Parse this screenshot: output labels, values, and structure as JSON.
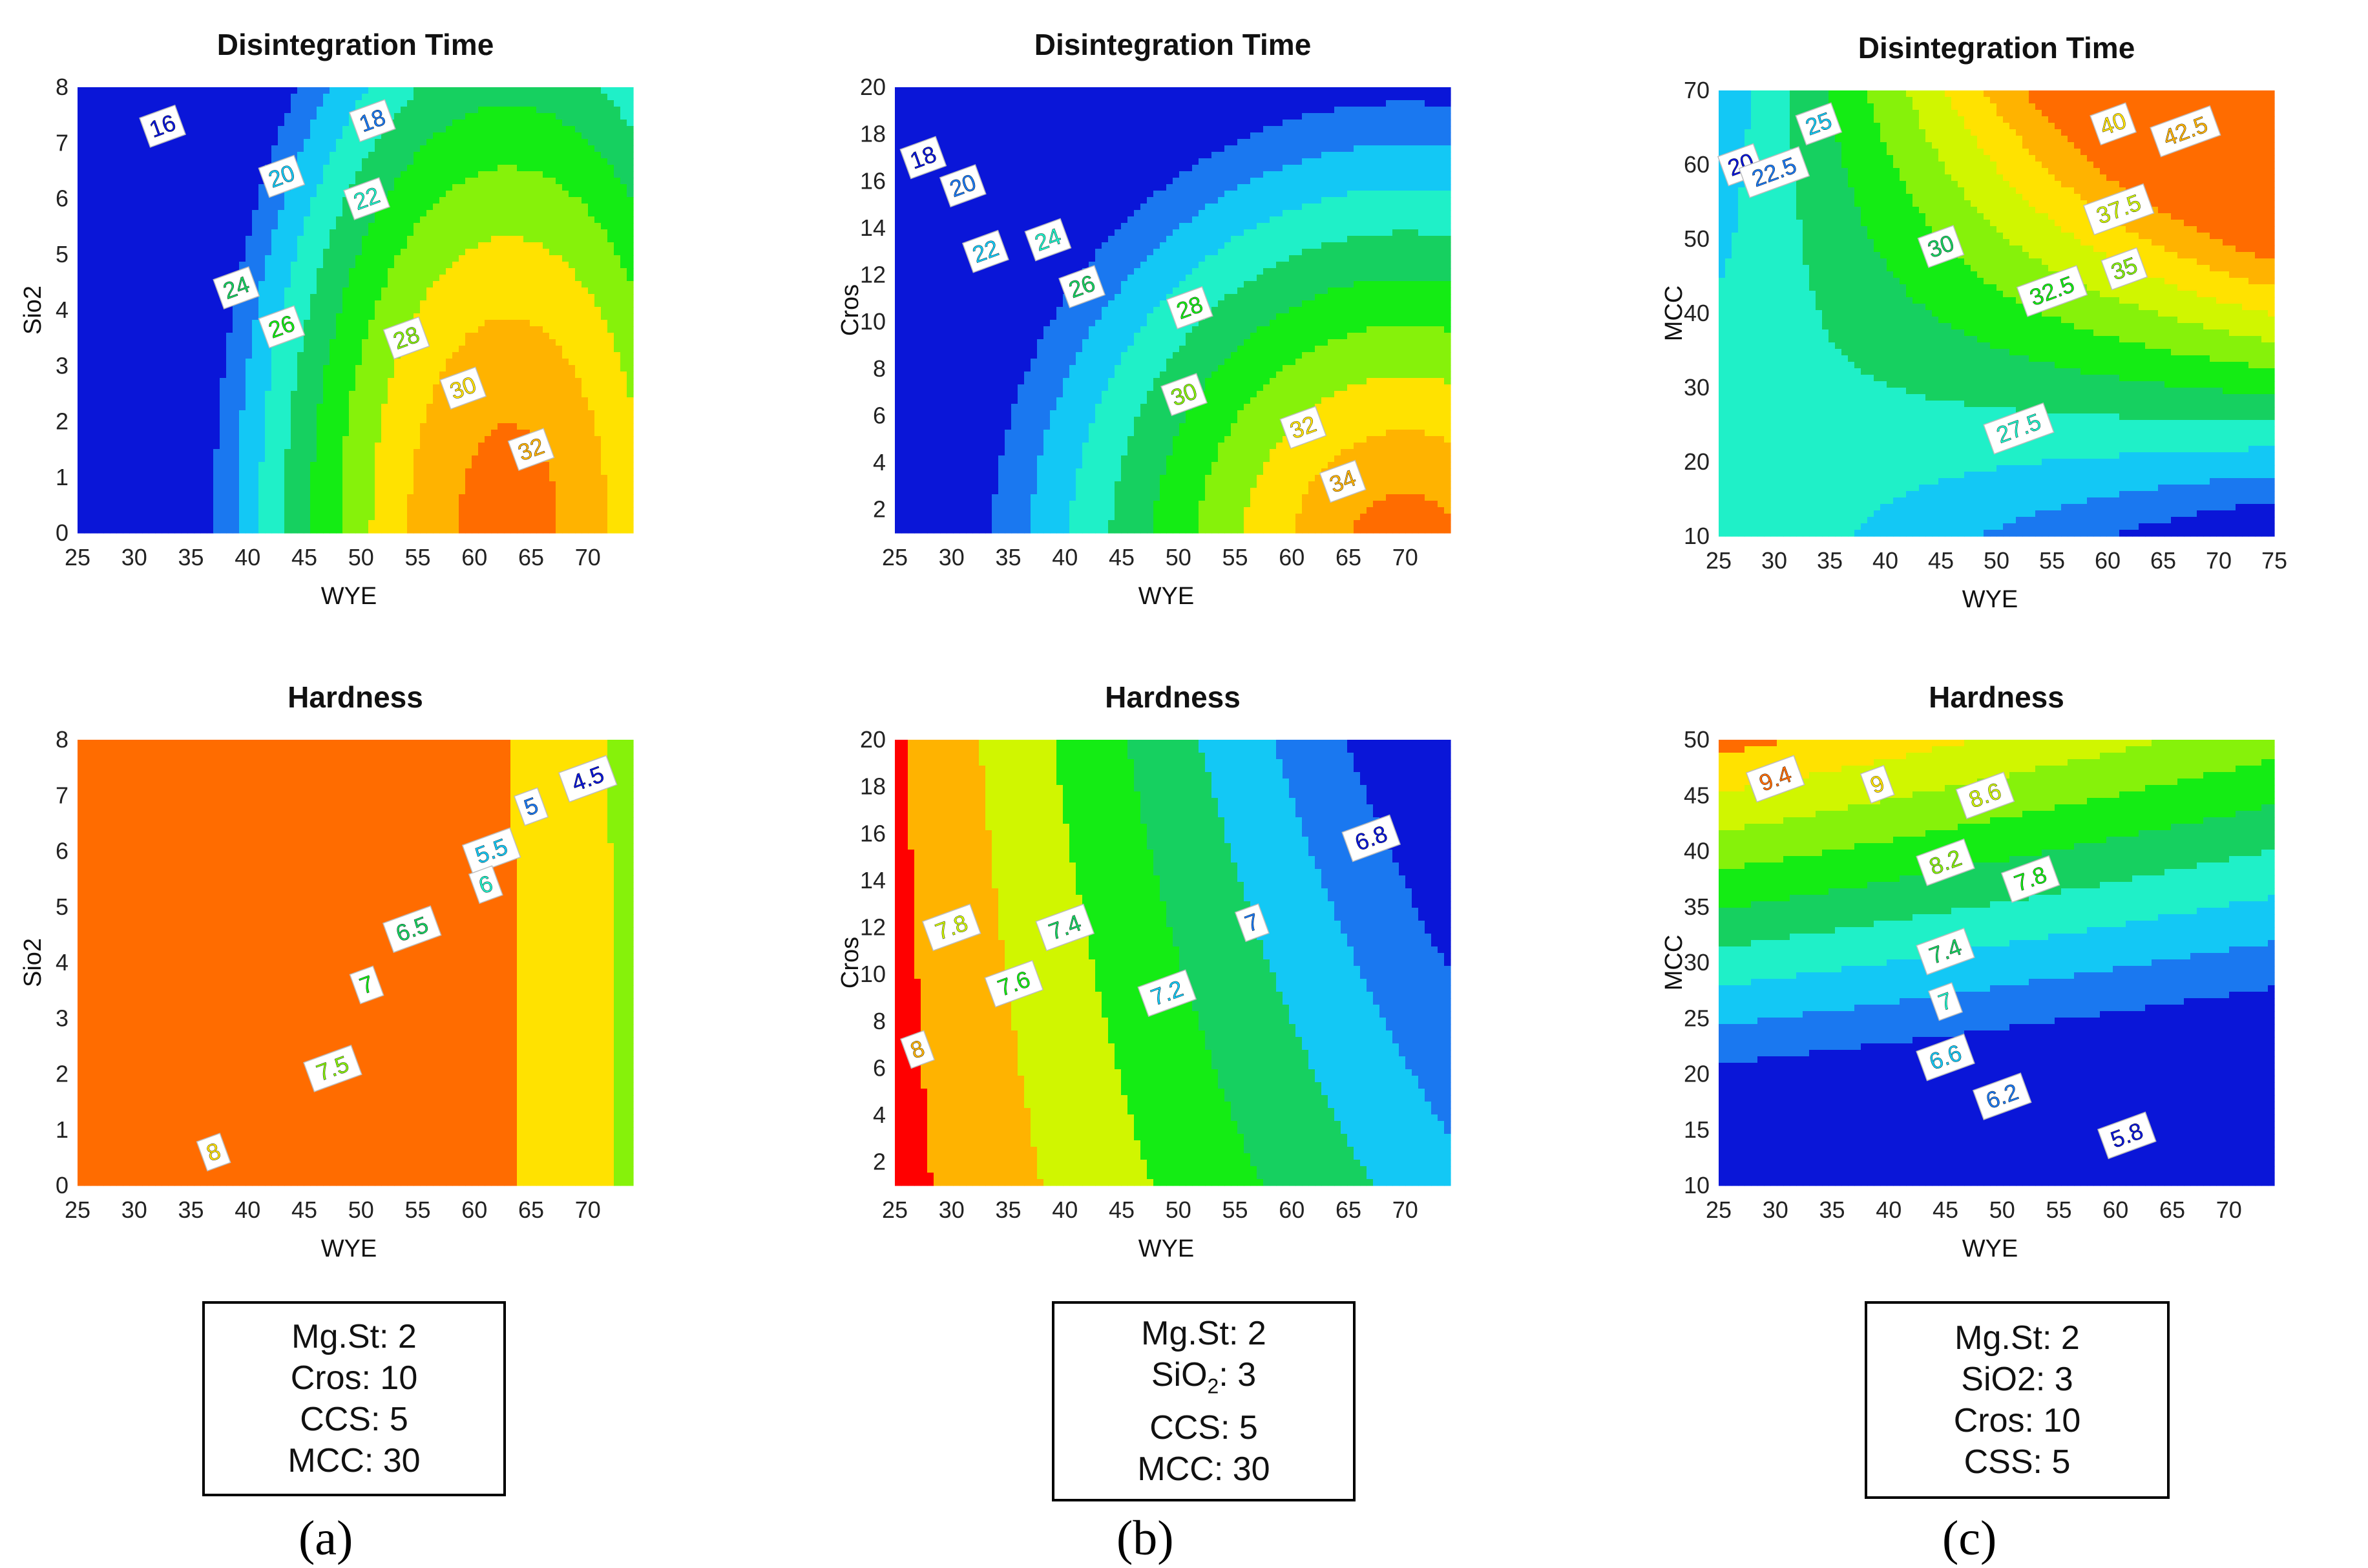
{
  "palette": [
    "#0a16d8",
    "#1a78f0",
    "#13c8f5",
    "#1ff0c8",
    "#16d060",
    "#14ec14",
    "#86f20a",
    "#d0f600",
    "#ffe200",
    "#ffb300",
    "#ff6c00",
    "#ff0000",
    "#b80000"
  ],
  "chart_data": [
    {
      "id": "a-top",
      "type": "contour",
      "title": "Disintegration Time",
      "xlabel": "WYE",
      "ylabel": "Sio2",
      "xlim": [
        25,
        74
      ],
      "ylim": [
        0,
        8
      ],
      "xticks": [
        "25",
        "30",
        "35",
        "40",
        "45",
        "50",
        "55",
        "60",
        "65",
        "70"
      ],
      "yticks": [
        "0",
        "1",
        "2",
        "3",
        "4",
        "5",
        "6",
        "7",
        "8"
      ],
      "levels": [
        16,
        18,
        20,
        22,
        24,
        26,
        28,
        30,
        32
      ],
      "colors": [
        "#0a16d8",
        "#1a78f0",
        "#13c8f5",
        "#1ff0c8",
        "#16d060",
        "#14ec14",
        "#86f20a",
        "#ffe200",
        "#ffb300",
        "#ff6c00",
        "#ff0000"
      ],
      "model": {
        "x0": 63,
        "y0": 0,
        "ax": 25,
        "ay": 11,
        "base": 33,
        "p": 1.6
      },
      "labels": [
        {
          "text": "16",
          "x": 32.5,
          "y": 7.3
        },
        {
          "text": "18",
          "x": 51,
          "y": 7.4
        },
        {
          "text": "20",
          "x": 43,
          "y": 6.4
        },
        {
          "text": "22",
          "x": 50.5,
          "y": 6.0
        },
        {
          "text": "24",
          "x": 39,
          "y": 4.4
        },
        {
          "text": "26",
          "x": 43,
          "y": 3.7
        },
        {
          "text": "28",
          "x": 54,
          "y": 3.5
        },
        {
          "text": "30",
          "x": 59,
          "y": 2.6
        },
        {
          "text": "32",
          "x": 65,
          "y": 1.5
        }
      ]
    },
    {
      "id": "b-top",
      "type": "contour",
      "title": "Disintegration Time",
      "xlabel": "WYE",
      "ylabel": "Cros",
      "xlim": [
        25,
        74
      ],
      "ylim": [
        1,
        20
      ],
      "xticks": [
        "25",
        "30",
        "35",
        "40",
        "45",
        "50",
        "55",
        "60",
        "65",
        "70"
      ],
      "yticks": [
        "2",
        "4",
        "6",
        "8",
        "10",
        "12",
        "14",
        "16",
        "18",
        "20"
      ],
      "levels": [
        18,
        20,
        22,
        24,
        26,
        28,
        30,
        32,
        34
      ],
      "colors": [
        "#0a16d8",
        "#1a78f0",
        "#13c8f5",
        "#1ff0c8",
        "#16d060",
        "#14ec14",
        "#86f20a",
        "#ffe200",
        "#ffb300",
        "#ff6c00",
        "#ff0000"
      ],
      "model": {
        "x0": 70,
        "y0": 0,
        "ax": 34,
        "ay": 18,
        "base": 35.5,
        "p": 1.25
      },
      "labels": [
        {
          "text": "18",
          "x": 27.5,
          "y": 17.0
        },
        {
          "text": "20",
          "x": 31,
          "y": 15.8
        },
        {
          "text": "22",
          "x": 33,
          "y": 13.0
        },
        {
          "text": "24",
          "x": 38.5,
          "y": 13.5
        },
        {
          "text": "26",
          "x": 41.5,
          "y": 11.5
        },
        {
          "text": "28",
          "x": 51,
          "y": 10.6
        },
        {
          "text": "30",
          "x": 50.5,
          "y": 6.9
        },
        {
          "text": "32",
          "x": 61,
          "y": 5.5
        },
        {
          "text": "34",
          "x": 64.5,
          "y": 3.2
        }
      ]
    },
    {
      "id": "c-top",
      "type": "contour",
      "title": "Disintegration Time",
      "xlabel": "WYE",
      "ylabel": "MCC",
      "xlim": [
        25,
        75
      ],
      "ylim": [
        10,
        70
      ],
      "xticks": [
        "25",
        "30",
        "35",
        "40",
        "45",
        "50",
        "55",
        "60",
        "65",
        "70",
        "75"
      ],
      "yticks": [
        "10",
        "20",
        "30",
        "40",
        "50",
        "60",
        "70"
      ],
      "levels": [
        20,
        22.5,
        25,
        27.5,
        30,
        32.5,
        35,
        37.5,
        40,
        42.5
      ],
      "colors": [
        "#0a16d8",
        "#1a78f0",
        "#13c8f5",
        "#1ff0c8",
        "#16d060",
        "#14ec14",
        "#86f20a",
        "#d0f600",
        "#ffe200",
        "#ffb300",
        "#ff6c00"
      ],
      "model": {
        "x0": 30,
        "y0": 24,
        "k": 0.0155
      },
      "labels": [
        {
          "text": "20",
          "x": 27,
          "y": 60
        },
        {
          "text": "22.5",
          "x": 30,
          "y": 59
        },
        {
          "text": "25",
          "x": 34,
          "y": 65.5
        },
        {
          "text": "27.5",
          "x": 52,
          "y": 24.5
        },
        {
          "text": "30",
          "x": 45,
          "y": 49
        },
        {
          "text": "32.5",
          "x": 55,
          "y": 43
        },
        {
          "text": "35",
          "x": 61.5,
          "y": 46
        },
        {
          "text": "37.5",
          "x": 61,
          "y": 54
        },
        {
          "text": "40",
          "x": 60.5,
          "y": 65.5
        },
        {
          "text": "42.5",
          "x": 67,
          "y": 64.5
        }
      ]
    },
    {
      "id": "a-bottom",
      "type": "contour",
      "title": "Hardness",
      "xlabel": "WYE",
      "ylabel": "Sio2",
      "xlim": [
        25,
        74
      ],
      "ylim": [
        0,
        8
      ],
      "xticks": [
        "25",
        "30",
        "35",
        "40",
        "45",
        "50",
        "55",
        "60",
        "65",
        "70"
      ],
      "yticks": [
        "0",
        "1",
        "2",
        "3",
        "4",
        "5",
        "6",
        "7",
        "8"
      ],
      "levels": [
        4.5,
        5,
        5.5,
        6,
        6.5,
        7,
        7.5,
        8
      ],
      "colors": [
        "#0a16d8",
        "#1a78f0",
        "#13c8f5",
        "#1ff0c8",
        "#16d060",
        "#14ec14",
        "#86f20a",
        "#ffe200",
        "#ff6c00",
        "#ff0000"
      ],
      "model": {
        "x0": 19,
        "y0": -1.2,
        "ax": 9,
        "ay": 10,
        "tA": 13.53,
        "tB": 2.475
      },
      "labels": [
        {
          "text": "4.5",
          "x": 70,
          "y": 7.3
        },
        {
          "text": "5",
          "x": 65,
          "y": 6.8
        },
        {
          "text": "5.5",
          "x": 61.5,
          "y": 6.0
        },
        {
          "text": "6",
          "x": 61,
          "y": 5.4
        },
        {
          "text": "6.5",
          "x": 54.5,
          "y": 4.6
        },
        {
          "text": "7",
          "x": 50.5,
          "y": 3.6
        },
        {
          "text": "7.5",
          "x": 47.5,
          "y": 2.1
        },
        {
          "text": "8",
          "x": 37,
          "y": 0.6
        }
      ]
    },
    {
      "id": "b-bottom",
      "type": "contour",
      "title": "Hardness",
      "xlabel": "WYE",
      "ylabel": "Cros",
      "xlim": [
        25,
        74
      ],
      "ylim": [
        1,
        20
      ],
      "xticks": [
        "25",
        "30",
        "35",
        "40",
        "45",
        "50",
        "55",
        "60",
        "65",
        "70"
      ],
      "yticks": [
        "2",
        "4",
        "6",
        "8",
        "10",
        "12",
        "14",
        "16",
        "18",
        "20"
      ],
      "levels": [
        6.8,
        7,
        7.2,
        7.4,
        7.6,
        7.8,
        8
      ],
      "colors": [
        "#0a16d8",
        "#1a78f0",
        "#13c8f5",
        "#16d060",
        "#14ec14",
        "#d0f600",
        "#ffb300",
        "#ff0000"
      ],
      "model": {
        "type": "linear"
      },
      "labels": [
        {
          "text": "6.8",
          "x": 67,
          "y": 15.8
        },
        {
          "text": "7",
          "x": 56.5,
          "y": 12.2
        },
        {
          "text": "7.2",
          "x": 49,
          "y": 9.2
        },
        {
          "text": "7.4",
          "x": 40,
          "y": 12.0
        },
        {
          "text": "7.6",
          "x": 35.5,
          "y": 9.6
        },
        {
          "text": "7.8",
          "x": 30,
          "y": 12.0
        },
        {
          "text": "8",
          "x": 27,
          "y": 6.8
        }
      ]
    },
    {
      "id": "c-bottom",
      "type": "contour",
      "title": "Hardness",
      "xlabel": "WYE",
      "ylabel": "MCC",
      "xlim": [
        25,
        74
      ],
      "ylim": [
        10,
        50
      ],
      "xticks": [
        "25",
        "30",
        "35",
        "40",
        "45",
        "50",
        "55",
        "60",
        "65",
        "70"
      ],
      "yticks": [
        "10",
        "15",
        "20",
        "25",
        "30",
        "35",
        "40",
        "45",
        "50"
      ],
      "levels": [
        5.8,
        6.2,
        6.6,
        7,
        7.4,
        7.8,
        8.2,
        8.6,
        9,
        9.4
      ],
      "colors": [
        "#0a16d8",
        "#1a78f0",
        "#13c8f5",
        "#1ff0c8",
        "#16d060",
        "#14ec14",
        "#86f20a",
        "#d0f600",
        "#ffe200",
        "#ff6c00",
        "#ff0000",
        "#b80000"
      ],
      "model": {
        "type": "tilted"
      },
      "labels": [
        {
          "text": "9.4",
          "x": 30,
          "y": 46.5
        },
        {
          "text": "9",
          "x": 39,
          "y": 46
        },
        {
          "text": "8.6",
          "x": 48.5,
          "y": 45
        },
        {
          "text": "8.2",
          "x": 45,
          "y": 39
        },
        {
          "text": "7.8",
          "x": 52.5,
          "y": 37.5
        },
        {
          "text": "7.4",
          "x": 45,
          "y": 31
        },
        {
          "text": "7",
          "x": 45,
          "y": 26.5
        },
        {
          "text": "6.6",
          "x": 45,
          "y": 21.5
        },
        {
          "text": "6.2",
          "x": 50,
          "y": 18
        },
        {
          "text": "5.8",
          "x": 61,
          "y": 14.5
        }
      ]
    }
  ],
  "factor_boxes": [
    {
      "id": "a",
      "lines": [
        "Mg.St: 2",
        "Cros: 10",
        "CCS: 5",
        "MCC: 30"
      ]
    },
    {
      "id": "b",
      "lines": [
        "Mg.St: 2",
        "SiO",
        "2",
        ": 3",
        "CCS: 5",
        "MCC: 30"
      ]
    },
    {
      "id": "c",
      "lines": [
        "Mg.St: 2",
        "SiO2: 3",
        "Cros: 10",
        "CSS: 5"
      ]
    }
  ],
  "panel_labels": [
    "(a)",
    "(b)",
    "(c)"
  ]
}
